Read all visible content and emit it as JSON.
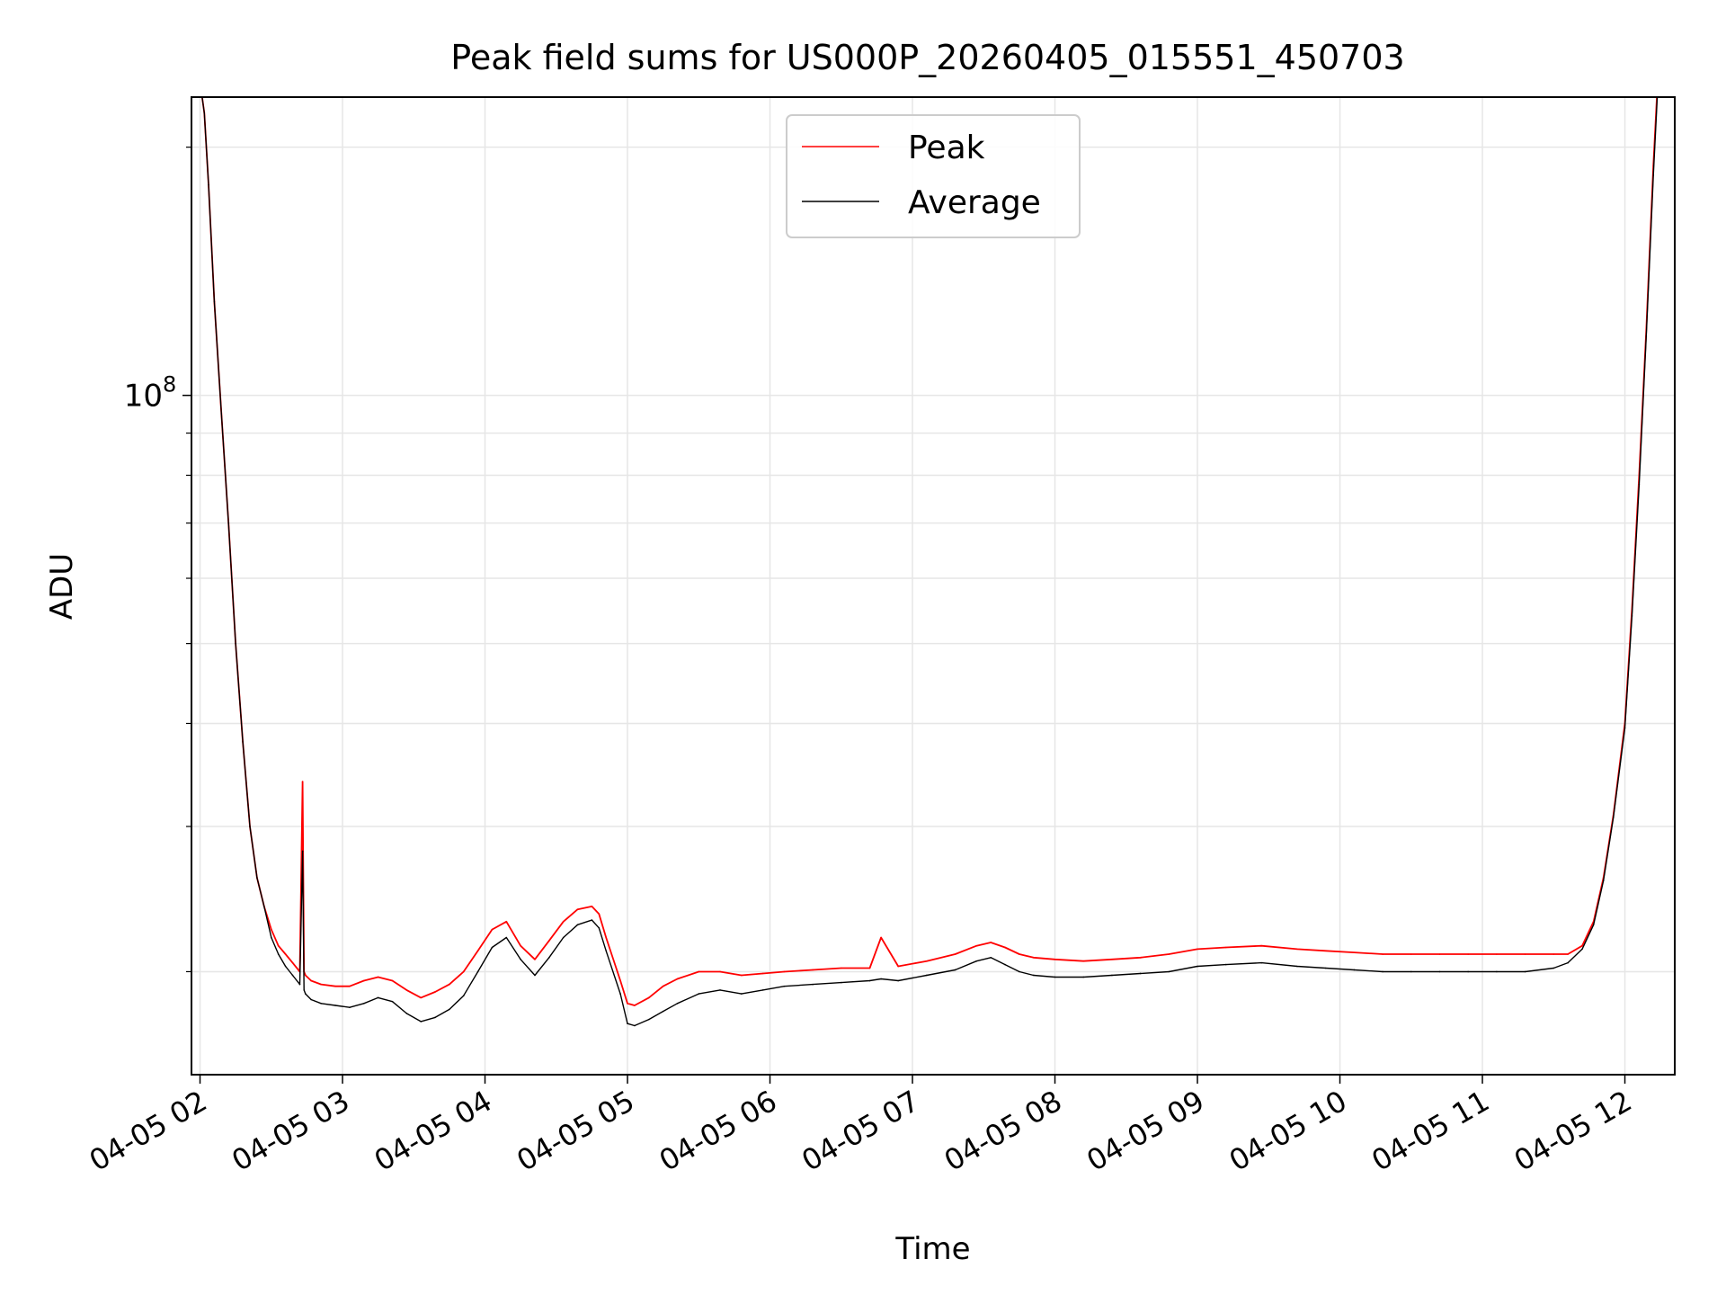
{
  "chart_data": {
    "type": "line",
    "title": "Peak field sums for US000P_20260405_015551_450703",
    "xlabel": "Time",
    "ylabel": "ADU",
    "yscale": "log",
    "ylim": [
      15000000,
      230000000
    ],
    "xlim": [
      1.94,
      12.35
    ],
    "x_unit": "hours since 2026-04-05 00:00",
    "grid": true,
    "legend_position": "upper center",
    "x_ticks": [
      {
        "value": 2,
        "label": "04-05 02"
      },
      {
        "value": 3,
        "label": "04-05 03"
      },
      {
        "value": 4,
        "label": "04-05 04"
      },
      {
        "value": 5,
        "label": "04-05 05"
      },
      {
        "value": 6,
        "label": "04-05 06"
      },
      {
        "value": 7,
        "label": "04-05 07"
      },
      {
        "value": 8,
        "label": "04-05 08"
      },
      {
        "value": 9,
        "label": "04-05 09"
      },
      {
        "value": 10,
        "label": "04-05 10"
      },
      {
        "value": 11,
        "label": "04-05 11"
      },
      {
        "value": 12,
        "label": "04-05 12"
      }
    ],
    "y_major_ticks": [
      {
        "value": 100000000,
        "base": "10",
        "exp": "8"
      }
    ],
    "y_minor_ticks": [
      20000000,
      30000000,
      40000000,
      50000000,
      60000000,
      70000000,
      80000000,
      90000000,
      200000000
    ],
    "series": [
      {
        "name": "Peak",
        "color": "#ff0000",
        "x": [
          2.0,
          2.03,
          2.06,
          2.1,
          2.15,
          2.2,
          2.25,
          2.3,
          2.35,
          2.4,
          2.45,
          2.5,
          2.55,
          2.6,
          2.65,
          2.7,
          2.72,
          2.73,
          2.74,
          2.78,
          2.85,
          2.95,
          3.05,
          3.15,
          3.25,
          3.35,
          3.45,
          3.55,
          3.65,
          3.75,
          3.85,
          3.95,
          4.05,
          4.15,
          4.25,
          4.35,
          4.45,
          4.55,
          4.65,
          4.75,
          4.8,
          4.85,
          4.95,
          5.0,
          5.05,
          5.15,
          5.25,
          5.35,
          5.5,
          5.65,
          5.8,
          5.95,
          6.1,
          6.3,
          6.5,
          6.7,
          6.78,
          6.9,
          7.1,
          7.3,
          7.45,
          7.55,
          7.65,
          7.75,
          7.85,
          8.0,
          8.2,
          8.4,
          8.6,
          8.8,
          9.0,
          9.2,
          9.45,
          9.7,
          9.9,
          10.1,
          10.3,
          10.5,
          10.7,
          10.9,
          11.1,
          11.3,
          11.5,
          11.6,
          11.7,
          11.78,
          11.85,
          11.92,
          12.0,
          12.05,
          12.1,
          12.15,
          12.2,
          12.24
        ],
        "y": [
          240000000,
          220000000,
          180000000,
          130000000,
          95000000,
          70000000,
          50000000,
          38000000,
          30000000,
          26000000,
          24000000,
          22500000,
          21500000,
          21000000,
          20500000,
          20000000,
          34000000,
          20000000,
          19800000,
          19500000,
          19300000,
          19200000,
          19200000,
          19500000,
          19700000,
          19500000,
          19000000,
          18600000,
          18900000,
          19300000,
          20000000,
          21200000,
          22500000,
          23000000,
          21500000,
          20700000,
          21800000,
          23000000,
          23800000,
          24000000,
          23500000,
          22000000,
          19500000,
          18300000,
          18200000,
          18600000,
          19200000,
          19600000,
          20000000,
          20000000,
          19800000,
          19900000,
          20000000,
          20100000,
          20200000,
          20200000,
          22000000,
          20300000,
          20600000,
          21000000,
          21500000,
          21700000,
          21400000,
          21000000,
          20800000,
          20700000,
          20600000,
          20700000,
          20800000,
          21000000,
          21300000,
          21400000,
          21500000,
          21300000,
          21200000,
          21100000,
          21000000,
          21000000,
          21000000,
          21000000,
          21000000,
          21000000,
          21000000,
          21000000,
          21500000,
          23000000,
          26000000,
          31000000,
          40000000,
          55000000,
          80000000,
          120000000,
          190000000,
          260000000
        ]
      },
      {
        "name": "Average",
        "color": "#000000",
        "x": [
          2.0,
          2.03,
          2.06,
          2.1,
          2.15,
          2.2,
          2.25,
          2.3,
          2.35,
          2.4,
          2.45,
          2.5,
          2.55,
          2.6,
          2.65,
          2.7,
          2.72,
          2.73,
          2.74,
          2.78,
          2.85,
          2.95,
          3.05,
          3.15,
          3.25,
          3.35,
          3.45,
          3.55,
          3.65,
          3.75,
          3.85,
          3.95,
          4.05,
          4.15,
          4.25,
          4.35,
          4.45,
          4.55,
          4.65,
          4.75,
          4.8,
          4.85,
          4.95,
          5.0,
          5.05,
          5.15,
          5.25,
          5.35,
          5.5,
          5.65,
          5.8,
          5.95,
          6.1,
          6.3,
          6.5,
          6.7,
          6.78,
          6.9,
          7.1,
          7.3,
          7.45,
          7.55,
          7.65,
          7.75,
          7.85,
          8.0,
          8.2,
          8.4,
          8.6,
          8.8,
          9.0,
          9.2,
          9.45,
          9.7,
          9.9,
          10.1,
          10.3,
          10.5,
          10.7,
          10.9,
          11.1,
          11.3,
          11.5,
          11.6,
          11.7,
          11.78,
          11.85,
          11.92,
          12.0,
          12.05,
          12.1,
          12.15,
          12.2,
          12.24
        ],
        "y": [
          240000000,
          220000000,
          180000000,
          130000000,
          95000000,
          70000000,
          50000000,
          38000000,
          30000000,
          26000000,
          24000000,
          22000000,
          21000000,
          20300000,
          19800000,
          19300000,
          28000000,
          19000000,
          18800000,
          18500000,
          18300000,
          18200000,
          18100000,
          18300000,
          18600000,
          18400000,
          17800000,
          17400000,
          17600000,
          18000000,
          18700000,
          20000000,
          21400000,
          22000000,
          20700000,
          19800000,
          20800000,
          22000000,
          22800000,
          23100000,
          22600000,
          21200000,
          18800000,
          17300000,
          17200000,
          17500000,
          17900000,
          18300000,
          18800000,
          19000000,
          18800000,
          19000000,
          19200000,
          19300000,
          19400000,
          19500000,
          19600000,
          19500000,
          19800000,
          20100000,
          20600000,
          20800000,
          20400000,
          20000000,
          19800000,
          19700000,
          19700000,
          19800000,
          19900000,
          20000000,
          20300000,
          20400000,
          20500000,
          20300000,
          20200000,
          20100000,
          20000000,
          20000000,
          20000000,
          20000000,
          20000000,
          20000000,
          20200000,
          20500000,
          21300000,
          22800000,
          25800000,
          30800000,
          39500000,
          54000000,
          78000000,
          118000000,
          185000000,
          255000000
        ]
      }
    ]
  }
}
